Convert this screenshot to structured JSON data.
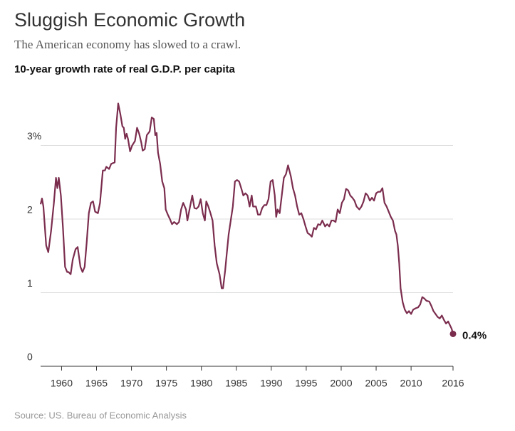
{
  "chart_data": {
    "type": "line",
    "title": "Sluggish Economic Growth",
    "subtitle": "The American economy has slowed to a crawl.",
    "y_label": "10-year growth rate of real G.D.P.  per capita",
    "source": "Source:  US. Bureau of Economic Analysis",
    "end_label": "0.4%",
    "color": "#7b2d4e",
    "grid": true,
    "xlim": [
      1957,
      2016
    ],
    "xticks": [
      1960,
      1965,
      1970,
      1975,
      1980,
      1985,
      1990,
      1995,
      2000,
      2005,
      2010,
      2016
    ],
    "ylim": [
      0,
      3.6
    ],
    "yticks": [
      0,
      1,
      2,
      {
        "value": 3,
        "label": "3%"
      }
    ],
    "x": [
      1957.0,
      1957.2,
      1957.4,
      1957.8,
      1958.1,
      1958.5,
      1958.9,
      1959.2,
      1959.4,
      1959.6,
      1959.9,
      1960.2,
      1960.5,
      1960.8,
      1961.0,
      1961.3,
      1961.6,
      1962.0,
      1962.3,
      1962.7,
      1963.0,
      1963.3,
      1963.6,
      1963.9,
      1964.2,
      1964.5,
      1964.8,
      1965.2,
      1965.5,
      1965.9,
      1966.2,
      1966.4,
      1966.8,
      1967.1,
      1967.6,
      1967.8,
      1968.1,
      1968.4,
      1968.7,
      1968.9,
      1969.1,
      1969.3,
      1969.5,
      1969.8,
      1970.1,
      1970.5,
      1970.8,
      1971.1,
      1971.4,
      1971.6,
      1971.9,
      1972.2,
      1972.6,
      1972.9,
      1973.2,
      1973.4,
      1973.6,
      1973.8,
      1974.1,
      1974.4,
      1974.7,
      1974.9,
      1975.2,
      1975.5,
      1975.8,
      1976.1,
      1976.5,
      1976.8,
      1977.1,
      1977.4,
      1977.8,
      1978.0,
      1978.3,
      1978.7,
      1979.0,
      1979.3,
      1979.6,
      1979.9,
      1980.2,
      1980.5,
      1980.7,
      1981.0,
      1981.3,
      1981.6,
      1981.9,
      1982.2,
      1982.6,
      1982.9,
      1983.1,
      1983.4,
      1983.6,
      1983.9,
      1984.2,
      1984.5,
      1984.8,
      1985.1,
      1985.4,
      1985.7,
      1986.0,
      1986.3,
      1986.6,
      1986.9,
      1987.2,
      1987.4,
      1987.8,
      1988.1,
      1988.4,
      1988.7,
      1989.0,
      1989.3,
      1989.6,
      1989.9,
      1990.2,
      1990.5,
      1990.7,
      1990.9,
      1991.2,
      1991.5,
      1991.8,
      1992.1,
      1992.4,
      1992.8,
      1993.1,
      1993.4,
      1993.7,
      1994.0,
      1994.3,
      1994.6,
      1994.9,
      1995.2,
      1995.5,
      1995.8,
      1996.1,
      1996.4,
      1996.7,
      1997.0,
      1997.3,
      1997.7,
      1998.0,
      1998.3,
      1998.6,
      1998.9,
      1999.2,
      1999.5,
      1999.8,
      2000.1,
      2000.4,
      2000.7,
      2001.0,
      2001.3,
      2001.6,
      2001.9,
      2002.2,
      2002.6,
      2002.9,
      2003.2,
      2003.5,
      2003.8,
      2004.1,
      2004.4,
      2004.7,
      2005.0,
      2005.3,
      2005.6,
      2005.9,
      2006.2,
      2006.5,
      2006.8,
      2007.1,
      2007.4,
      2007.7,
      2007.9,
      2008.1,
      2008.3,
      2008.5,
      2008.8,
      2009.1,
      2009.4,
      2009.7,
      2010.0,
      2010.3,
      2010.7,
      2011.0,
      2011.3,
      2011.6,
      2011.9,
      2012.2,
      2012.6,
      2012.9,
      2013.2,
      2013.5,
      2013.8,
      2014.1,
      2014.4,
      2014.7,
      2015.0,
      2015.3,
      2015.6,
      2015.8,
      2016.0
    ],
    "values": [
      2.2,
      2.28,
      2.17,
      1.64,
      1.55,
      1.84,
      2.22,
      2.56,
      2.42,
      2.56,
      2.32,
      1.88,
      1.35,
      1.28,
      1.28,
      1.25,
      1.45,
      1.59,
      1.62,
      1.35,
      1.28,
      1.35,
      1.69,
      2.08,
      2.22,
      2.24,
      2.1,
      2.08,
      2.22,
      2.66,
      2.66,
      2.71,
      2.68,
      2.75,
      2.77,
      3.24,
      3.57,
      3.43,
      3.26,
      3.24,
      3.09,
      3.16,
      3.09,
      2.92,
      3.0,
      3.06,
      3.24,
      3.16,
      3.04,
      2.93,
      2.95,
      3.14,
      3.19,
      3.38,
      3.36,
      3.14,
      3.17,
      2.9,
      2.75,
      2.51,
      2.42,
      2.13,
      2.06,
      2.0,
      1.93,
      1.96,
      1.93,
      1.96,
      2.13,
      2.22,
      2.13,
      1.98,
      2.13,
      2.32,
      2.15,
      2.14,
      2.17,
      2.27,
      2.08,
      1.98,
      2.24,
      2.17,
      2.08,
      1.98,
      1.64,
      1.4,
      1.25,
      1.06,
      1.06,
      1.3,
      1.5,
      1.79,
      1.98,
      2.17,
      2.51,
      2.53,
      2.51,
      2.42,
      2.32,
      2.35,
      2.32,
      2.17,
      2.32,
      2.17,
      2.17,
      2.06,
      2.06,
      2.15,
      2.19,
      2.19,
      2.27,
      2.51,
      2.53,
      2.32,
      2.03,
      2.13,
      2.08,
      2.32,
      2.56,
      2.61,
      2.73,
      2.58,
      2.42,
      2.32,
      2.17,
      2.06,
      2.08,
      2.0,
      1.9,
      1.81,
      1.79,
      1.76,
      1.88,
      1.86,
      1.93,
      1.92,
      1.98,
      1.9,
      1.93,
      1.9,
      1.98,
      1.98,
      1.96,
      2.13,
      2.08,
      2.22,
      2.27,
      2.41,
      2.39,
      2.32,
      2.29,
      2.25,
      2.17,
      2.13,
      2.17,
      2.24,
      2.35,
      2.32,
      2.25,
      2.29,
      2.25,
      2.35,
      2.37,
      2.37,
      2.42,
      2.22,
      2.17,
      2.1,
      2.03,
      1.98,
      1.84,
      1.79,
      1.64,
      1.4,
      1.06,
      0.87,
      0.77,
      0.72,
      0.75,
      0.71,
      0.77,
      0.79,
      0.8,
      0.84,
      0.94,
      0.92,
      0.89,
      0.88,
      0.82,
      0.75,
      0.71,
      0.67,
      0.65,
      0.69,
      0.63,
      0.58,
      0.61,
      0.55,
      0.51,
      0.44
    ]
  }
}
